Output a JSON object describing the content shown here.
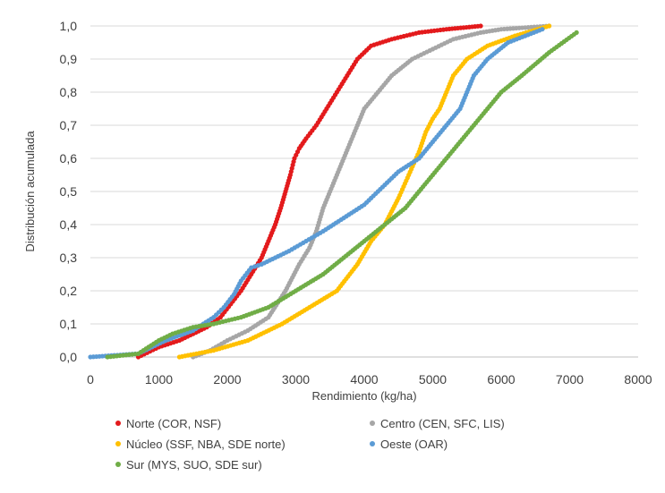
{
  "chart_data": {
    "type": "scatter",
    "title": "",
    "xlabel": "Rendimiento (kg/ha)",
    "ylabel": "Distribución acumulada",
    "xlim": [
      0,
      8000
    ],
    "ylim": [
      0,
      1
    ],
    "x_ticks": [
      {
        "value": 0,
        "label": "0"
      },
      {
        "value": 1000,
        "label": "1000"
      },
      {
        "value": 2000,
        "label": "2000"
      },
      {
        "value": 3000,
        "label": "3000"
      },
      {
        "value": 4000,
        "label": "4000"
      },
      {
        "value": 5000,
        "label": "5000"
      },
      {
        "value": 6000,
        "label": "6000"
      },
      {
        "value": 7000,
        "label": "7000"
      },
      {
        "value": 8000,
        "label": "8000"
      }
    ],
    "y_ticks": [
      {
        "value": 0,
        "label": "0,0"
      },
      {
        "value": 0.1,
        "label": "0,1"
      },
      {
        "value": 0.2,
        "label": "0,2"
      },
      {
        "value": 0.3,
        "label": "0,3"
      },
      {
        "value": 0.4,
        "label": "0,4"
      },
      {
        "value": 0.5,
        "label": "0,5"
      },
      {
        "value": 0.6,
        "label": "0,6"
      },
      {
        "value": 0.7,
        "label": "0,7"
      },
      {
        "value": 0.8,
        "label": "0,8"
      },
      {
        "value": 0.9,
        "label": "0,9"
      },
      {
        "value": 1,
        "label": "1,0"
      }
    ],
    "grid": {
      "horizontal": true,
      "vertical": false
    },
    "legend_position": "bottom",
    "series": [
      {
        "name": "Norte (COR, NSF)",
        "color": "#E31A1C",
        "x": [
          700,
          1000,
          1300,
          1500,
          1700,
          1900,
          2050,
          2200,
          2350,
          2500,
          2600,
          2700,
          2780,
          2850,
          2920,
          2980,
          3050,
          3150,
          3300,
          3450,
          3600,
          3750,
          3900,
          4100,
          4400,
          4800,
          5200,
          5700
        ],
        "y": [
          0.0,
          0.03,
          0.05,
          0.07,
          0.09,
          0.12,
          0.16,
          0.2,
          0.25,
          0.3,
          0.35,
          0.4,
          0.45,
          0.5,
          0.55,
          0.6,
          0.63,
          0.66,
          0.7,
          0.75,
          0.8,
          0.85,
          0.9,
          0.94,
          0.96,
          0.98,
          0.99,
          1.0
        ]
      },
      {
        "name": "Centro (CEN, SFC, LIS)",
        "color": "#A6A6A6",
        "x": [
          1500,
          1750,
          2000,
          2300,
          2600,
          2850,
          3050,
          3200,
          3300,
          3400,
          3500,
          3600,
          3700,
          3800,
          3900,
          4000,
          4200,
          4400,
          4700,
          5000,
          5300,
          5700,
          6000,
          6700
        ],
        "y": [
          0.0,
          0.02,
          0.05,
          0.08,
          0.12,
          0.2,
          0.28,
          0.33,
          0.38,
          0.45,
          0.5,
          0.55,
          0.6,
          0.65,
          0.7,
          0.75,
          0.8,
          0.85,
          0.9,
          0.93,
          0.96,
          0.98,
          0.99,
          1.0
        ]
      },
      {
        "name": "Núcleo (SSF, NBA, SDE norte)",
        "color": "#FFC000",
        "x": [
          1300,
          1800,
          2300,
          2800,
          3200,
          3600,
          3900,
          4100,
          4300,
          4500,
          4650,
          4800,
          4900,
          5000,
          5100,
          5200,
          5300,
          5500,
          5800,
          6200,
          6700
        ],
        "y": [
          0.0,
          0.02,
          0.05,
          0.1,
          0.15,
          0.2,
          0.28,
          0.35,
          0.4,
          0.48,
          0.55,
          0.62,
          0.68,
          0.72,
          0.75,
          0.8,
          0.85,
          0.9,
          0.94,
          0.97,
          1.0
        ]
      },
      {
        "name": "Oeste (OAR)",
        "color": "#5B9BD5",
        "x": [
          0,
          700,
          1100,
          1500,
          1800,
          1950,
          2100,
          2200,
          2350,
          2500,
          2700,
          2900,
          3150,
          3400,
          3700,
          4000,
          4300,
          4500,
          4800,
          5000,
          5200,
          5400,
          5500,
          5600,
          5800,
          6100,
          6600
        ],
        "y": [
          0.0,
          0.01,
          0.05,
          0.08,
          0.12,
          0.15,
          0.19,
          0.23,
          0.27,
          0.28,
          0.3,
          0.32,
          0.35,
          0.38,
          0.42,
          0.46,
          0.52,
          0.56,
          0.6,
          0.65,
          0.7,
          0.75,
          0.8,
          0.85,
          0.9,
          0.95,
          0.99
        ]
      },
      {
        "name": "Sur (MYS, SUO, SDE sur)",
        "color": "#70AD47",
        "x": [
          250,
          700,
          1000,
          1200,
          1500,
          1800,
          2200,
          2600,
          3000,
          3400,
          3700,
          4000,
          4300,
          4600,
          4800,
          5000,
          5200,
          5400,
          5600,
          5800,
          6000,
          6300,
          6700,
          7100
        ],
        "y": [
          0.0,
          0.01,
          0.05,
          0.07,
          0.09,
          0.1,
          0.12,
          0.15,
          0.2,
          0.25,
          0.3,
          0.35,
          0.4,
          0.45,
          0.5,
          0.55,
          0.6,
          0.65,
          0.7,
          0.75,
          0.8,
          0.85,
          0.92,
          0.98
        ]
      }
    ]
  }
}
